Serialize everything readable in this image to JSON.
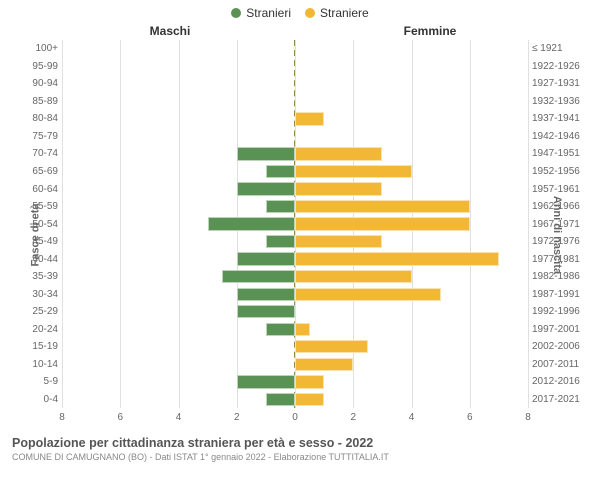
{
  "chart": {
    "type": "population-pyramid",
    "legend": [
      {
        "label": "Stranieri",
        "color": "#5a9154"
      },
      {
        "label": "Straniere",
        "color": "#f2b735"
      }
    ],
    "headers": {
      "left": "Maschi",
      "right": "Femmine"
    },
    "axis_titles": {
      "left": "Fasce di età",
      "right": "Anni di nascita"
    },
    "x_max": 8,
    "x_ticks": [
      8,
      6,
      4,
      2,
      0,
      2,
      4,
      6,
      8
    ],
    "grid_color": "#e0e0e0",
    "center_dash_color": "#998844",
    "background_color": "#ffffff",
    "bar_colors": {
      "male": "#5a9154",
      "female": "#f2b735"
    },
    "label_fontsize": 10,
    "legend_fontsize": 12,
    "rows": [
      {
        "age": "100+",
        "birth": "≤ 1921",
        "male": 0,
        "female": 0
      },
      {
        "age": "95-99",
        "birth": "1922-1926",
        "male": 0,
        "female": 0
      },
      {
        "age": "90-94",
        "birth": "1927-1931",
        "male": 0,
        "female": 0
      },
      {
        "age": "85-89",
        "birth": "1932-1936",
        "male": 0,
        "female": 0
      },
      {
        "age": "80-84",
        "birth": "1937-1941",
        "male": 0,
        "female": 1
      },
      {
        "age": "75-79",
        "birth": "1942-1946",
        "male": 0,
        "female": 0
      },
      {
        "age": "70-74",
        "birth": "1947-1951",
        "male": 2,
        "female": 3
      },
      {
        "age": "65-69",
        "birth": "1952-1956",
        "male": 1,
        "female": 4
      },
      {
        "age": "60-64",
        "birth": "1957-1961",
        "male": 2,
        "female": 3
      },
      {
        "age": "55-59",
        "birth": "1962-1966",
        "male": 1,
        "female": 6
      },
      {
        "age": "50-54",
        "birth": "1967-1971",
        "male": 3,
        "female": 6
      },
      {
        "age": "45-49",
        "birth": "1972-1976",
        "male": 1,
        "female": 3
      },
      {
        "age": "40-44",
        "birth": "1977-1981",
        "male": 2,
        "female": 7
      },
      {
        "age": "35-39",
        "birth": "1982-1986",
        "male": 2.5,
        "female": 4
      },
      {
        "age": "30-34",
        "birth": "1987-1991",
        "male": 2,
        "female": 5
      },
      {
        "age": "25-29",
        "birth": "1992-1996",
        "male": 2,
        "female": 0
      },
      {
        "age": "20-24",
        "birth": "1997-2001",
        "male": 1,
        "female": 0.5
      },
      {
        "age": "15-19",
        "birth": "2002-2006",
        "male": 0,
        "female": 2.5
      },
      {
        "age": "10-14",
        "birth": "2007-2011",
        "male": 0,
        "female": 2
      },
      {
        "age": "5-9",
        "birth": "2012-2016",
        "male": 2,
        "female": 1
      },
      {
        "age": "0-4",
        "birth": "2017-2021",
        "male": 1,
        "female": 1
      }
    ]
  },
  "footer": {
    "title": "Popolazione per cittadinanza straniera per età e sesso - 2022",
    "subtitle": "COMUNE DI CAMUGNANO (BO) - Dati ISTAT 1° gennaio 2022 - Elaborazione TUTTITALIA.IT"
  }
}
